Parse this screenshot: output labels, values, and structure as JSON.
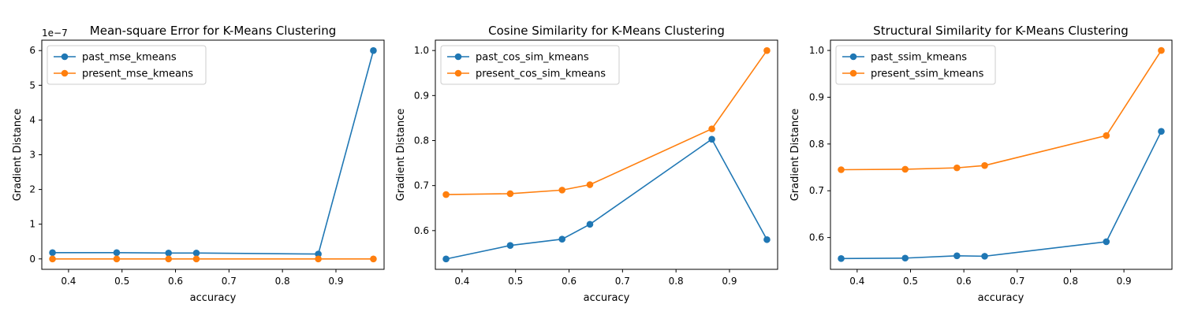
{
  "colors": {
    "past": "#1f77b4",
    "present": "#ff7f0e"
  },
  "chart_data": [
    {
      "type": "line",
      "title": "Mean-square Error for K-Means Clustering",
      "xlabel": "accuracy",
      "ylabel": "Gradient Distance",
      "y_offset_label": "1e−7",
      "x": [
        0.37,
        0.49,
        0.587,
        0.639,
        0.867,
        0.97
      ],
      "series": [
        {
          "name": "past_mse_kmeans",
          "values": [
            1.8e-08,
            1.8e-08,
            1.7e-08,
            1.7e-08,
            1.4e-08,
            6e-07
          ]
        },
        {
          "name": "present_mse_kmeans",
          "values": [
            0,
            0,
            0,
            0,
            0,
            0
          ]
        }
      ],
      "xlim": [
        0.35,
        0.99
      ],
      "ylim": [
        -3e-08,
        6.3e-07
      ],
      "xticks": [
        0.4,
        0.5,
        0.6,
        0.7,
        0.8,
        0.9
      ],
      "xtick_labels": [
        "0.4",
        "0.5",
        "0.6",
        "0.7",
        "0.8",
        "0.9"
      ],
      "yticks": [
        0,
        1e-07,
        2e-07,
        3e-07,
        4e-07,
        5e-07,
        6e-07
      ],
      "ytick_labels": [
        "0",
        "1",
        "2",
        "3",
        "4",
        "5",
        "6"
      ],
      "legend": "top-left",
      "grid": false
    },
    {
      "type": "line",
      "title": "Cosine Similarity for K-Means Clustering",
      "xlabel": "accuracy",
      "ylabel": "Gradient Distance",
      "x": [
        0.37,
        0.49,
        0.587,
        0.639,
        0.867,
        0.97
      ],
      "series": [
        {
          "name": "past_cos_sim_kmeans",
          "values": [
            0.537,
            0.567,
            0.581,
            0.614,
            0.803,
            0.58
          ]
        },
        {
          "name": "present_cos_sim_kmeans",
          "values": [
            0.68,
            0.682,
            0.69,
            0.702,
            0.826,
            1.0
          ]
        }
      ],
      "xlim": [
        0.35,
        0.99
      ],
      "ylim": [
        0.514,
        1.023
      ],
      "xticks": [
        0.4,
        0.5,
        0.6,
        0.7,
        0.8,
        0.9
      ],
      "xtick_labels": [
        "0.4",
        "0.5",
        "0.6",
        "0.7",
        "0.8",
        "0.9"
      ],
      "yticks": [
        0.6,
        0.7,
        0.8,
        0.9,
        1.0
      ],
      "ytick_labels": [
        "0.6",
        "0.7",
        "0.8",
        "0.9",
        "1.0"
      ],
      "legend": "top-left",
      "grid": false
    },
    {
      "type": "line",
      "title": "Structural Similarity for K-Means Clustering",
      "xlabel": "accuracy",
      "ylabel": "Gradient Distance",
      "x": [
        0.37,
        0.49,
        0.587,
        0.639,
        0.867,
        0.97
      ],
      "series": [
        {
          "name": "past_ssim_kmeans",
          "values": [
            0.555,
            0.556,
            0.561,
            0.56,
            0.591,
            0.827
          ]
        },
        {
          "name": "present_ssim_kmeans",
          "values": [
            0.745,
            0.746,
            0.749,
            0.754,
            0.818,
            1.0
          ]
        }
      ],
      "xlim": [
        0.35,
        0.99
      ],
      "ylim": [
        0.532,
        1.022
      ],
      "xticks": [
        0.4,
        0.5,
        0.6,
        0.7,
        0.8,
        0.9
      ],
      "xtick_labels": [
        "0.4",
        "0.5",
        "0.6",
        "0.7",
        "0.8",
        "0.9"
      ],
      "yticks": [
        0.6,
        0.7,
        0.8,
        0.9,
        1.0
      ],
      "ytick_labels": [
        "0.6",
        "0.7",
        "0.8",
        "0.9",
        "1.0"
      ],
      "legend": "top-left",
      "grid": false
    }
  ]
}
